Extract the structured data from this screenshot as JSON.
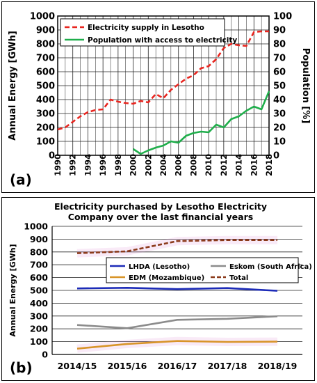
{
  "chart_data": [
    {
      "type": "line",
      "panel_label": "(a)",
      "xlabel": "",
      "ylabel": "Annual Energy [GWh]",
      "y2label": "Population [%]",
      "xlim": [
        1990,
        2018
      ],
      "ylim": [
        0,
        1000
      ],
      "y2lim": [
        0,
        100
      ],
      "x_ticks": [
        1990,
        1992,
        1994,
        1996,
        1998,
        2000,
        2002,
        2004,
        2006,
        2008,
        2010,
        2012,
        2014,
        2016,
        2018
      ],
      "y_ticks": [
        0,
        100,
        200,
        300,
        400,
        500,
        600,
        700,
        800,
        900,
        1000
      ],
      "y2_ticks": [
        0,
        10,
        20,
        30,
        40,
        50,
        60,
        70,
        80,
        90,
        100
      ],
      "grid": true,
      "legend_position": "top-left",
      "series": [
        {
          "name": "Electricity supply in Lesotho",
          "axis": "left",
          "color": "#e8251f",
          "dash": true,
          "x": [
            1990,
            1991,
            1992,
            1993,
            1994,
            1995,
            1996,
            1997,
            1998,
            1999,
            2000,
            2001,
            2002,
            2003,
            2004,
            2005,
            2006,
            2007,
            2008,
            2009,
            2010,
            2011,
            2012,
            2013,
            2014,
            2015,
            2016,
            2017,
            2018
          ],
          "y": [
            185,
            200,
            240,
            280,
            310,
            325,
            330,
            400,
            385,
            375,
            370,
            390,
            380,
            440,
            410,
            470,
            510,
            550,
            575,
            625,
            640,
            690,
            770,
            800,
            790,
            785,
            885,
            890,
            890
          ]
        },
        {
          "name": "Population with access to electricity",
          "axis": "right",
          "color": "#1fae4b",
          "dash": false,
          "x": [
            2000,
            2001,
            2002,
            2003,
            2004,
            2005,
            2006,
            2007,
            2008,
            2009,
            2010,
            2011,
            2012,
            2013,
            2014,
            2015,
            2016,
            2017,
            2018
          ],
          "y": [
            4.5,
            1,
            3.5,
            5.5,
            7,
            10,
            9,
            14,
            16,
            17,
            16.5,
            22,
            20,
            26,
            28,
            32,
            35,
            33,
            46
          ]
        }
      ]
    },
    {
      "type": "line",
      "panel_label": "(b)",
      "title": "Electricity purchased by Lesotho Electricity\nCompany over the last financial years",
      "title_lines": [
        "Electricity purchased by Lesotho Electricity",
        "Company over the last financial years"
      ],
      "xlabel": "",
      "ylabel": "Annual Energy [GWh]",
      "categories": [
        "2014/15",
        "2015/16",
        "2016/17",
        "2017/18",
        "2018/19"
      ],
      "ylim": [
        0,
        1000
      ],
      "y_ticks": [
        0,
        100,
        200,
        300,
        400,
        500,
        600,
        700,
        800,
        900,
        1000
      ],
      "grid": true,
      "legend_position": "center",
      "series": [
        {
          "name": "LHDA (Lesotho)",
          "color": "#1c2bb8",
          "dash": false,
          "values": [
            515,
            520,
            510,
            518,
            497
          ]
        },
        {
          "name": "Eskom (South Africa)",
          "color": "#8c8c8c",
          "dash": false,
          "values": [
            230,
            205,
            270,
            278,
            298
          ]
        },
        {
          "name": "EDM (Mozambique)",
          "color": "#d89428",
          "dash": false,
          "values": [
            45,
            82,
            105,
            98,
            100
          ]
        },
        {
          "name": "Total",
          "color": "#8b3a1a",
          "dash": true,
          "values": [
            790,
            805,
            885,
            893,
            893
          ]
        }
      ]
    }
  ]
}
